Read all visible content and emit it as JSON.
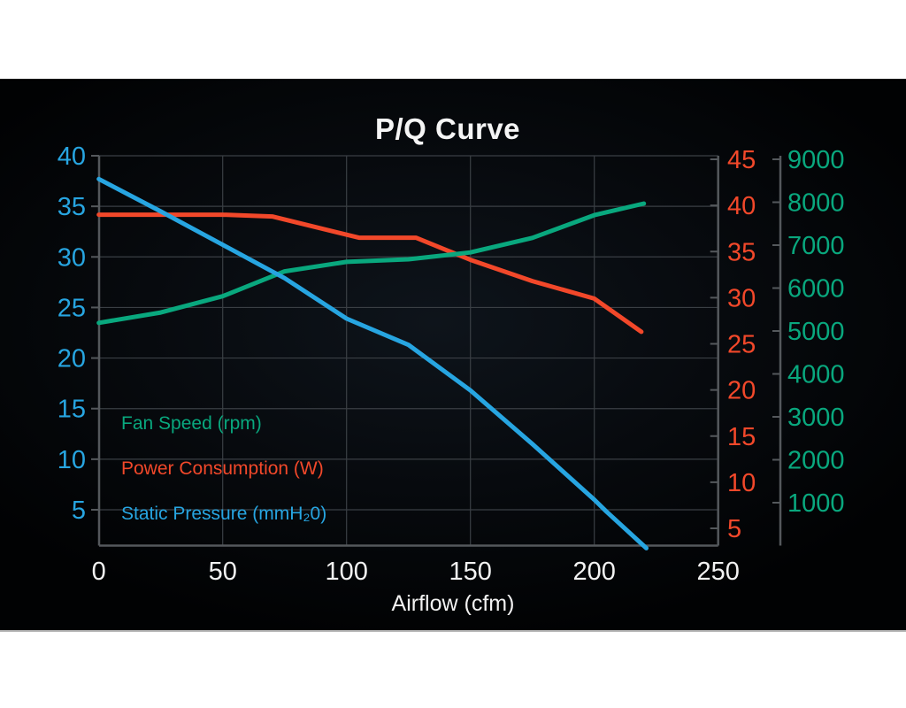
{
  "slide": {
    "background": "#000000"
  },
  "chart_data": {
    "type": "line",
    "title": "P/Q Curve",
    "xlabel": "Airflow (cfm)",
    "grid": true,
    "colors": {
      "pressure_blue": "#27a5e1",
      "power_orange": "#f2482a",
      "fan_green": "#09a87e",
      "text_white": "#f2f2f2",
      "gridline": "#3a3f44",
      "axis_line": "#54585c"
    },
    "x_axis": {
      "label": "Airflow (cfm)",
      "ticks": [
        0,
        50,
        100,
        150,
        200,
        250
      ],
      "range": [
        0,
        250
      ]
    },
    "axes": {
      "left": {
        "name": "Static Pressure (mmH₂0)",
        "color": "#27a5e1",
        "ticks": [
          40,
          35,
          30,
          25,
          20,
          15,
          10,
          5
        ],
        "range": [
          0,
          40
        ]
      },
      "right_inner": {
        "name": "Power Consumption (W)",
        "color": "#f2482a",
        "ticks": [
          45,
          40,
          35,
          30,
          25,
          20,
          15,
          10,
          5
        ],
        "range": [
          0,
          45
        ]
      },
      "right_outer": {
        "name": "Fan Speed (rpm)",
        "color": "#09a87e",
        "ticks": [
          9000,
          8000,
          7000,
          6000,
          5000,
          4000,
          3000,
          2000,
          1000
        ],
        "range": [
          0,
          9000
        ]
      }
    },
    "legend": [
      {
        "label": "Fan Speed (rpm)",
        "color": "#09a87e"
      },
      {
        "label": "Power Consumption (W)",
        "color": "#f2482a"
      },
      {
        "label": "Static Pressure (mmH₂0)",
        "color": "#27a5e1"
      }
    ],
    "series": [
      {
        "name": "Power Consumption (W)",
        "key": "power-consumption",
        "axis": "right_inner",
        "color": "#f2482a",
        "points": [
          [
            0,
            39
          ],
          [
            50,
            39
          ],
          [
            70,
            38.8
          ],
          [
            105,
            36.5
          ],
          [
            128,
            36.5
          ],
          [
            150,
            34.1
          ],
          [
            175,
            31.8
          ],
          [
            200,
            29.9
          ],
          [
            219,
            26.3
          ]
        ]
      },
      {
        "name": "Fan Speed (rpm)",
        "key": "fan-speed",
        "axis": "right_outer",
        "color": "#09a87e",
        "points": [
          [
            0,
            5190
          ],
          [
            25,
            5430
          ],
          [
            50,
            5810
          ],
          [
            75,
            6390
          ],
          [
            100,
            6610
          ],
          [
            125,
            6670
          ],
          [
            150,
            6830
          ],
          [
            175,
            7170
          ],
          [
            200,
            7700
          ],
          [
            220,
            7970
          ]
        ]
      },
      {
        "name": "Static Pressure (mmH₂0)",
        "key": "static-pressure",
        "axis": "left",
        "color": "#27a5e1",
        "points": [
          [
            0,
            37.7
          ],
          [
            25,
            34.5
          ],
          [
            50,
            31.2
          ],
          [
            75,
            27.9
          ],
          [
            100,
            23.9
          ],
          [
            125,
            21.3
          ],
          [
            150,
            16.8
          ],
          [
            175,
            11.5
          ],
          [
            200,
            6.0
          ],
          [
            205,
            4.8
          ],
          [
            221,
            1.2
          ]
        ]
      }
    ]
  }
}
